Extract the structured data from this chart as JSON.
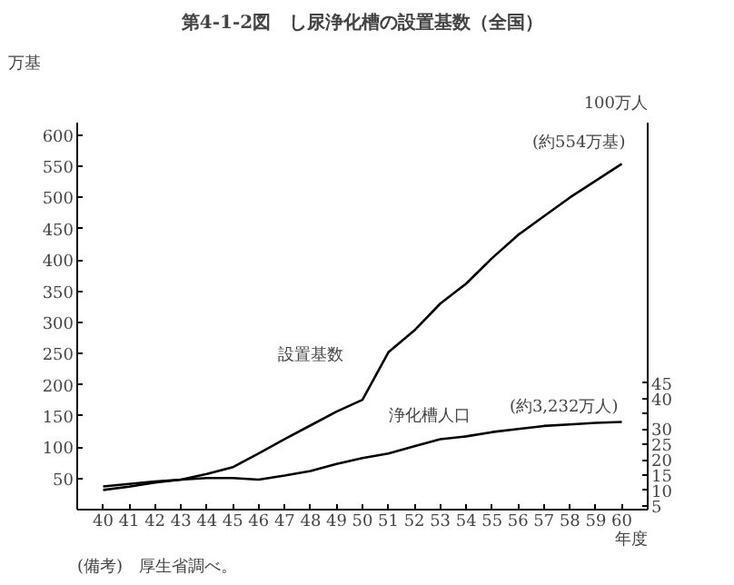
{
  "chart_data": {
    "type": "line",
    "title": "第4-1-2図　し尿浄化槽の設置基数（全国）",
    "x": [
      40,
      41,
      42,
      43,
      44,
      45,
      46,
      47,
      48,
      49,
      50,
      51,
      52,
      53,
      54,
      55,
      56,
      57,
      58,
      59,
      60
    ],
    "series": [
      {
        "name": "設置基数",
        "color": "#000000",
        "values": [
          37,
          41,
          45,
          48,
          57,
          68,
          90,
          113,
          135,
          157,
          176,
          252,
          287,
          330,
          362,
          403,
          440,
          470,
          500,
          527,
          554
        ]
      },
      {
        "name": "浄化槽人口",
        "color": "#000000",
        "axis": "y2",
        "values": [
          10.1,
          11.2,
          12.5,
          13.5,
          14,
          14,
          13.5,
          14.8,
          16.3,
          18.6,
          20.5,
          22,
          24.4,
          26.7,
          27.6,
          29,
          30,
          31,
          31.5,
          32,
          32.3
        ]
      }
    ],
    "xlim": [
      39,
      61
    ],
    "xticks": [
      40,
      41,
      42,
      43,
      44,
      45,
      46,
      47,
      48,
      49,
      50,
      51,
      52,
      53,
      54,
      55,
      56,
      57,
      58,
      59,
      60
    ],
    "ylim": [
      0,
      620
    ],
    "yticks": [
      50,
      100,
      150,
      200,
      250,
      300,
      350,
      400,
      450,
      500,
      550,
      600
    ],
    "y2lim": [
      3.7,
      130
    ],
    "y2ticks": [
      5,
      10,
      15,
      20,
      25,
      30,
      {
        "value": 35,
        "label": null
      },
      40,
      45
    ],
    "xlabel": "年度",
    "ylabel": "万基",
    "y2label": "100万人",
    "annotations": [
      {
        "text": "(約554万基)",
        "x": 60,
        "y": 554
      },
      "(約3,232万人)",
      "(備考)　厚生省調べ。"
    ],
    "grid": false,
    "marker": "none",
    "line_style": "solid"
  }
}
